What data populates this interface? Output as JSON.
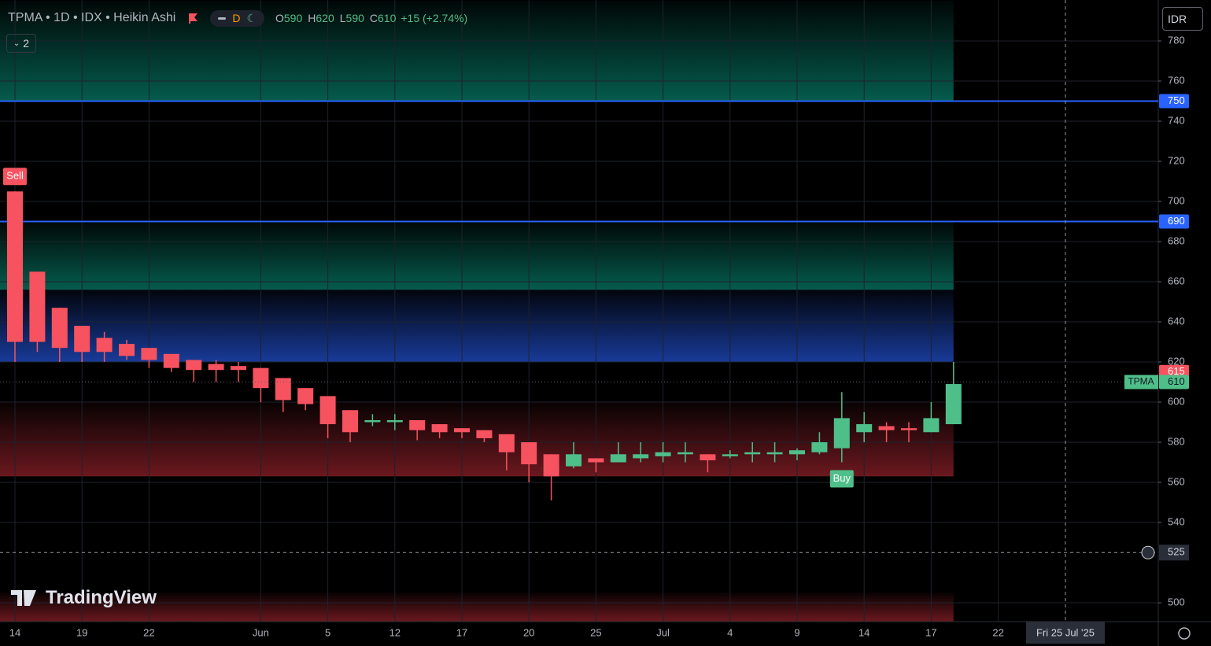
{
  "header": {
    "symbol": "TPMA • 1D • IDX • Heikin Ashi",
    "interval": "D",
    "ohlc": [
      {
        "label": "O",
        "value": 590
      },
      {
        "label": "H",
        "value": 620
      },
      {
        "label": "L",
        "value": 590
      },
      {
        "label": "C",
        "value": 610
      }
    ],
    "change": "+15 (+2.74%)",
    "currency": "IDR",
    "indicator_count": "2",
    "brand": "TradingView"
  },
  "chart_data": {
    "type": "candlestick",
    "up_color": "#4fbf8a",
    "down_color": "#f7525f",
    "categories": [
      "14",
      null,
      null,
      "19",
      null,
      null,
      "22",
      null,
      null,
      null,
      null,
      "Jun",
      null,
      null,
      "5",
      null,
      null,
      "12",
      null,
      null,
      "17",
      null,
      null,
      "20",
      null,
      null,
      "25",
      null,
      null,
      "Jul",
      null,
      null,
      "4",
      null,
      null,
      "9",
      null,
      null,
      "14",
      null,
      null,
      "17",
      null,
      null,
      "22"
    ],
    "open": [
      705,
      665,
      647,
      638,
      632,
      629,
      627,
      624,
      621,
      619,
      618,
      617,
      612,
      607,
      603,
      596,
      590,
      590,
      591,
      589,
      587,
      586,
      584,
      580,
      574,
      568,
      572,
      570,
      572,
      573,
      574,
      574,
      573,
      574,
      574,
      574,
      575,
      577,
      585,
      588,
      587,
      585,
      589,
      null,
      null
    ],
    "high": [
      705,
      665,
      647,
      638,
      635,
      631,
      627,
      624,
      621,
      621,
      620,
      617,
      612,
      607,
      603,
      596,
      594,
      594,
      591,
      589,
      587,
      586,
      584,
      580,
      574,
      580,
      572,
      580,
      580,
      580,
      580,
      574,
      576,
      580,
      580,
      577,
      585,
      605,
      595,
      590,
      590,
      600,
      620,
      null,
      null
    ],
    "low": [
      620,
      625,
      620,
      620,
      620,
      621,
      617,
      615,
      610,
      610,
      610,
      600,
      595,
      596,
      582,
      580,
      588,
      586,
      581,
      582,
      582,
      580,
      566,
      560,
      551,
      567,
      565,
      570,
      570,
      570,
      570,
      565,
      572,
      570,
      570,
      571,
      574,
      570,
      580,
      580,
      580,
      585,
      589,
      null,
      null
    ],
    "close": [
      630,
      630,
      627,
      625,
      625,
      623,
      621,
      617,
      616,
      616,
      616,
      607,
      601,
      599,
      589,
      585,
      591,
      591,
      586,
      585,
      585,
      582,
      575,
      569,
      563,
      574,
      570,
      574,
      574,
      575,
      575,
      571,
      574,
      575,
      575,
      576,
      580,
      592,
      589,
      586,
      586,
      592,
      609,
      null,
      null
    ],
    "signals": [
      "Sell",
      null,
      null,
      null,
      null,
      null,
      null,
      null,
      null,
      null,
      null,
      null,
      null,
      null,
      null,
      null,
      null,
      null,
      null,
      null,
      null,
      null,
      null,
      null,
      null,
      null,
      null,
      null,
      null,
      null,
      null,
      null,
      null,
      null,
      null,
      null,
      null,
      "Buy",
      null,
      null,
      null,
      null,
      null,
      null,
      null
    ],
    "ylim": [
      490.6,
      800.4
    ],
    "yticks": [
      500,
      540,
      560,
      580,
      600,
      620,
      640,
      660,
      680,
      700,
      720,
      740,
      760,
      780
    ],
    "grid": true,
    "zones": [
      {
        "from": 750,
        "to": 800,
        "color": "#089981"
      },
      {
        "from": 656,
        "to": 690,
        "color": "#089981"
      },
      {
        "from": 620,
        "to": 656,
        "color": "#2962ff"
      },
      {
        "from": 563,
        "to": 600,
        "color": "#b22833"
      },
      {
        "from": 490.6,
        "to": 505,
        "color": "#b22833"
      }
    ],
    "levels": [
      {
        "value": 750,
        "color": "#2962ff"
      },
      {
        "value": 690,
        "color": "#2962ff"
      }
    ],
    "price_tags": [
      {
        "value": 750,
        "color": "#2962ff"
      },
      {
        "value": 690,
        "color": "#2962ff"
      },
      {
        "value": 615,
        "color": "#f7525f"
      },
      {
        "label": "TPMA",
        "value": 610,
        "color": "#4fbf8a"
      }
    ],
    "crosshair": {
      "x_label": "Fri 25 Jul '25",
      "y_label": 525
    }
  }
}
